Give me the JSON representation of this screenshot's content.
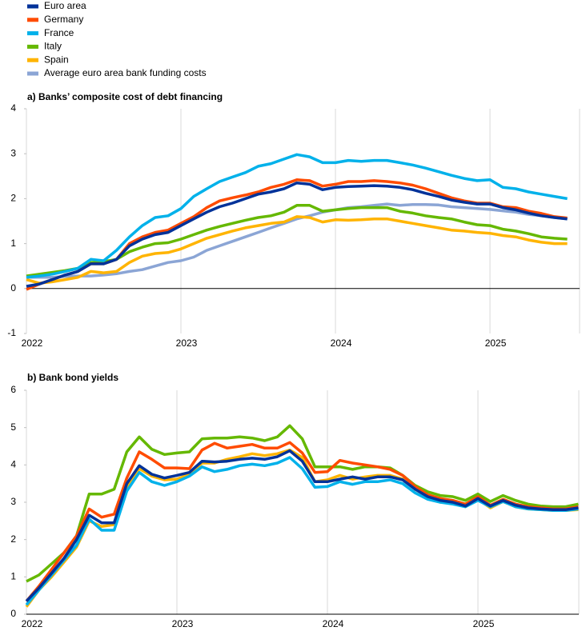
{
  "chart_data": [
    {
      "type": "line",
      "title": "a) Banks’ composite cost of debt financing",
      "x": [
        2022,
        2022.083,
        2022.167,
        2022.25,
        2022.333,
        2022.417,
        2022.5,
        2022.583,
        2022.667,
        2022.75,
        2022.833,
        2022.917,
        2023,
        2023.083,
        2023.167,
        2023.25,
        2023.333,
        2023.417,
        2023.5,
        2023.583,
        2023.667,
        2023.75,
        2023.833,
        2023.917,
        2024,
        2024.083,
        2024.167,
        2024.25,
        2024.333,
        2024.417,
        2024.5,
        2024.583,
        2024.667,
        2024.75,
        2024.833,
        2024.917,
        2025,
        2025.083,
        2025.167,
        2025.25,
        2025.333,
        2025.417,
        2025.5
      ],
      "xlim": [
        2022,
        2025.58
      ],
      "xticks": [
        2022,
        2023,
        2024,
        2025
      ],
      "ylim": [
        -1,
        4
      ],
      "yticks": [
        -1,
        0,
        1,
        2,
        3,
        4
      ],
      "grid": "x",
      "series": [
        {
          "name": "Euro area",
          "color": "#003299",
          "values": [
            0.05,
            0.1,
            0.2,
            0.3,
            0.38,
            0.55,
            0.55,
            0.65,
            0.95,
            1.1,
            1.2,
            1.25,
            1.4,
            1.55,
            1.7,
            1.82,
            1.9,
            2.0,
            2.1,
            2.15,
            2.22,
            2.35,
            2.32,
            2.2,
            2.25,
            2.27,
            2.28,
            2.29,
            2.28,
            2.25,
            2.2,
            2.12,
            2.05,
            1.97,
            1.92,
            1.88,
            1.88,
            1.8,
            1.75,
            1.68,
            1.62,
            1.58,
            1.55
          ]
        },
        {
          "name": "Germany",
          "color": "#ff4b00",
          "values": [
            -0.02,
            0.1,
            0.2,
            0.3,
            0.38,
            0.55,
            0.55,
            0.65,
            1.0,
            1.15,
            1.25,
            1.3,
            1.45,
            1.6,
            1.8,
            1.95,
            2.02,
            2.08,
            2.15,
            2.25,
            2.32,
            2.42,
            2.4,
            2.28,
            2.32,
            2.38,
            2.38,
            2.4,
            2.38,
            2.35,
            2.3,
            2.22,
            2.12,
            2.02,
            1.95,
            1.9,
            1.9,
            1.82,
            1.8,
            1.72,
            1.67,
            1.6,
            1.57
          ]
        },
        {
          "name": "France",
          "color": "#00b1ea",
          "values": [
            0.25,
            0.28,
            0.32,
            0.38,
            0.45,
            0.65,
            0.62,
            0.85,
            1.15,
            1.4,
            1.58,
            1.62,
            1.78,
            2.05,
            2.22,
            2.38,
            2.48,
            2.58,
            2.72,
            2.78,
            2.88,
            2.98,
            2.93,
            2.8,
            2.8,
            2.85,
            2.83,
            2.85,
            2.85,
            2.8,
            2.75,
            2.68,
            2.6,
            2.52,
            2.45,
            2.4,
            2.42,
            2.25,
            2.22,
            2.15,
            2.1,
            2.05,
            2.0
          ]
        },
        {
          "name": "Italy",
          "color": "#65b800",
          "values": [
            0.28,
            0.32,
            0.36,
            0.4,
            0.45,
            0.58,
            0.6,
            0.65,
            0.82,
            0.92,
            1.0,
            1.02,
            1.1,
            1.2,
            1.3,
            1.38,
            1.45,
            1.52,
            1.58,
            1.62,
            1.7,
            1.85,
            1.85,
            1.72,
            1.75,
            1.78,
            1.8,
            1.8,
            1.8,
            1.72,
            1.68,
            1.62,
            1.58,
            1.55,
            1.48,
            1.42,
            1.4,
            1.32,
            1.28,
            1.22,
            1.15,
            1.12,
            1.1
          ]
        },
        {
          "name": "Spain",
          "color": "#ffb400",
          "values": [
            0.2,
            0.12,
            0.15,
            0.2,
            0.25,
            0.38,
            0.35,
            0.38,
            0.58,
            0.72,
            0.78,
            0.8,
            0.88,
            1.0,
            1.12,
            1.2,
            1.28,
            1.35,
            1.4,
            1.45,
            1.48,
            1.6,
            1.58,
            1.48,
            1.53,
            1.52,
            1.53,
            1.55,
            1.55,
            1.5,
            1.45,
            1.4,
            1.35,
            1.3,
            1.28,
            1.25,
            1.23,
            1.18,
            1.15,
            1.08,
            1.03,
            1.0,
            1.0
          ]
        },
        {
          "name": "Average euro area bank funding costs",
          "color": "#8ba5d5",
          "values": [
            0.25,
            0.25,
            0.25,
            0.27,
            0.28,
            0.28,
            0.3,
            0.33,
            0.38,
            0.42,
            0.5,
            0.58,
            0.62,
            0.7,
            0.85,
            0.95,
            1.05,
            1.15,
            1.25,
            1.35,
            1.45,
            1.55,
            1.62,
            1.7,
            1.75,
            1.8,
            1.82,
            1.85,
            1.88,
            1.85,
            1.87,
            1.87,
            1.86,
            1.82,
            1.8,
            1.78,
            1.76,
            1.73,
            1.7,
            1.65,
            1.62,
            1.58,
            1.55
          ]
        }
      ]
    },
    {
      "type": "line",
      "title": "b) Bank bond yields",
      "x": [
        2022,
        2022.083,
        2022.167,
        2022.25,
        2022.333,
        2022.417,
        2022.5,
        2022.583,
        2022.667,
        2022.75,
        2022.833,
        2022.917,
        2023,
        2023.083,
        2023.167,
        2023.25,
        2023.333,
        2023.417,
        2023.5,
        2023.583,
        2023.667,
        2023.75,
        2023.833,
        2023.917,
        2024,
        2024.083,
        2024.167,
        2024.25,
        2024.333,
        2024.417,
        2024.5,
        2024.583,
        2024.667,
        2024.75,
        2024.833,
        2024.917,
        2025,
        2025.083,
        2025.167,
        2025.25,
        2025.333,
        2025.417,
        2025.5,
        2025.583,
        2025.667
      ],
      "xlim": [
        2022,
        2025.67
      ],
      "xticks": [
        2022,
        2023,
        2024,
        2025
      ],
      "ylim": [
        0,
        6
      ],
      "yticks": [
        0,
        1,
        2,
        3,
        4,
        5,
        6
      ],
      "grid": "x",
      "series": [
        {
          "name": "Euro area",
          "color": "#003299",
          "values": [
            0.35,
            0.7,
            1.1,
            1.5,
            2.0,
            2.65,
            2.45,
            2.45,
            3.5,
            3.98,
            3.75,
            3.65,
            3.72,
            3.8,
            4.1,
            4.08,
            4.1,
            4.15,
            4.18,
            4.15,
            4.22,
            4.38,
            4.1,
            3.55,
            3.55,
            3.62,
            3.68,
            3.62,
            3.68,
            3.68,
            3.6,
            3.35,
            3.15,
            3.05,
            3.0,
            2.9,
            3.1,
            2.9,
            3.05,
            2.92,
            2.85,
            2.82,
            2.8,
            2.8,
            2.85
          ]
        },
        {
          "name": "Germany",
          "color": "#ff4b00",
          "values": [
            0.35,
            0.75,
            1.2,
            1.65,
            2.1,
            2.82,
            2.6,
            2.68,
            3.65,
            4.35,
            4.15,
            3.92,
            3.92,
            3.9,
            4.4,
            4.58,
            4.45,
            4.5,
            4.55,
            4.45,
            4.45,
            4.6,
            4.32,
            3.8,
            3.82,
            4.12,
            4.05,
            4.0,
            3.95,
            3.88,
            3.72,
            3.42,
            3.2,
            3.1,
            3.05,
            2.95,
            3.15,
            2.92,
            3.08,
            2.95,
            2.88,
            2.85,
            2.82,
            2.82,
            2.88
          ]
        },
        {
          "name": "France",
          "color": "#00b1ea",
          "values": [
            0.25,
            0.65,
            1.05,
            1.45,
            1.85,
            2.55,
            2.25,
            2.25,
            3.3,
            3.8,
            3.55,
            3.45,
            3.55,
            3.7,
            3.95,
            3.82,
            3.88,
            3.98,
            4.02,
            3.98,
            4.05,
            4.2,
            3.9,
            3.4,
            3.42,
            3.55,
            3.48,
            3.55,
            3.55,
            3.6,
            3.5,
            3.25,
            3.08,
            3.0,
            2.95,
            2.88,
            3.05,
            2.88,
            3.02,
            2.88,
            2.82,
            2.8,
            2.78,
            2.78,
            2.82
          ]
        },
        {
          "name": "Italy",
          "color": "#65b800",
          "values": [
            0.88,
            1.05,
            1.35,
            1.65,
            2.1,
            3.22,
            3.22,
            3.35,
            4.35,
            4.75,
            4.42,
            4.28,
            4.32,
            4.35,
            4.7,
            4.72,
            4.72,
            4.75,
            4.72,
            4.65,
            4.75,
            5.05,
            4.7,
            3.95,
            3.95,
            3.95,
            3.88,
            3.95,
            3.95,
            3.92,
            3.72,
            3.45,
            3.28,
            3.18,
            3.15,
            3.05,
            3.22,
            3.02,
            3.18,
            3.05,
            2.95,
            2.9,
            2.88,
            2.88,
            2.95
          ]
        },
        {
          "name": "Spain",
          "color": "#ffb400",
          "values": [
            0.2,
            0.65,
            1.0,
            1.4,
            1.8,
            2.5,
            2.35,
            2.4,
            3.4,
            3.9,
            3.7,
            3.6,
            3.62,
            3.75,
            4.05,
            4.05,
            4.15,
            4.22,
            4.3,
            4.25,
            4.3,
            4.4,
            4.2,
            3.55,
            3.6,
            3.72,
            3.62,
            3.68,
            3.72,
            3.72,
            3.62,
            3.35,
            3.15,
            3.0,
            2.98,
            2.88,
            3.08,
            2.85,
            3.02,
            2.88,
            2.82,
            2.8,
            2.78,
            2.78,
            2.8
          ]
        }
      ]
    }
  ]
}
